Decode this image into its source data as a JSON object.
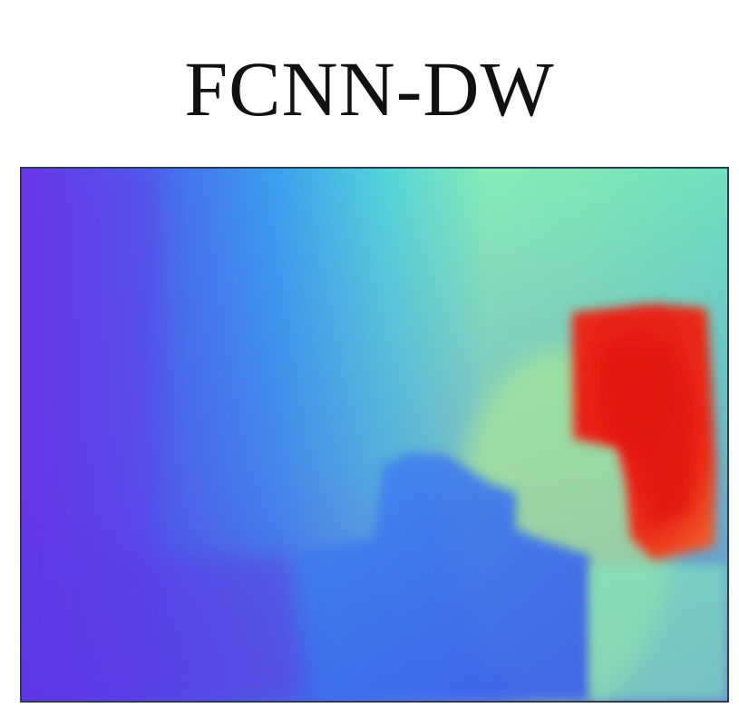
{
  "figure": {
    "title": "FCNN-DW",
    "image": {
      "description_kind": "depth-map",
      "colormap": "rainbow",
      "palette": {
        "low": "#6b33e8",
        "mid_low": "#2f8ef0",
        "mid": "#5ee3c8",
        "mid_high": "#a7f08e",
        "high": "#e81a14"
      }
    }
  }
}
